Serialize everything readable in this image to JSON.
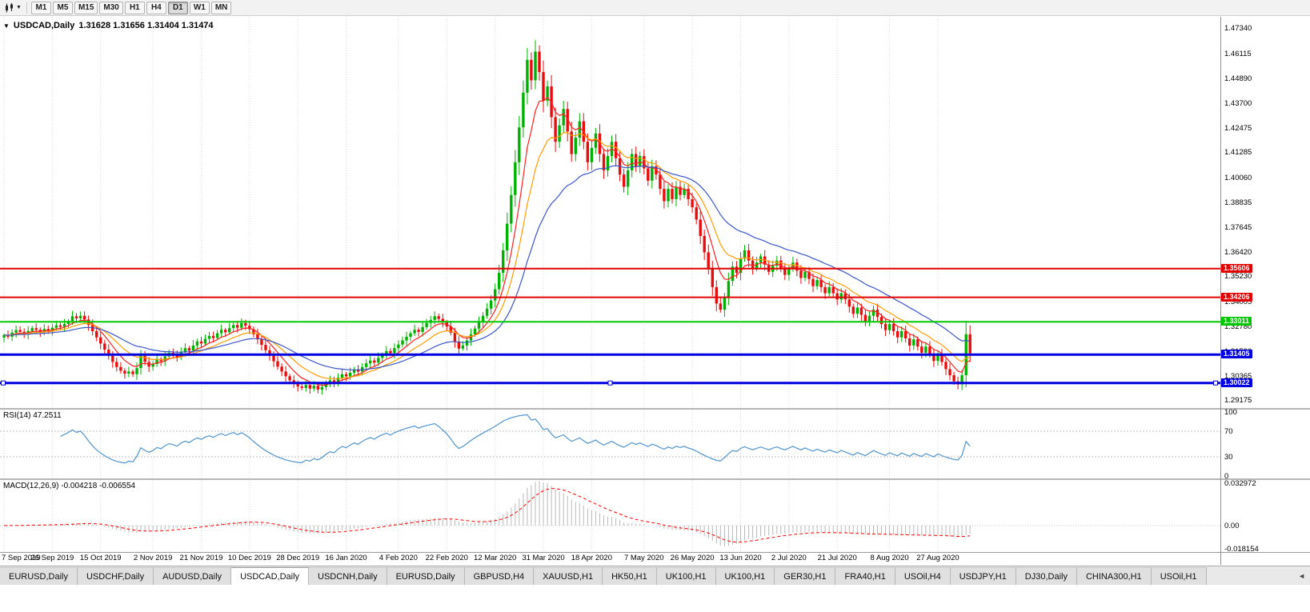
{
  "toolbar": {
    "timeframes": [
      "M1",
      "M5",
      "M15",
      "M30",
      "H1",
      "H4",
      "D1",
      "W1",
      "MN"
    ],
    "active_timeframe": "D1",
    "chart_selector_icon": "candlestick-chart-dropdown-icon"
  },
  "chart": {
    "symbol_title": "USDCAD,Daily",
    "ohlc_text": "1.31628 1.31656 1.31404 1.31474",
    "marker_icon": "down-triangle-icon",
    "price_axis_labels": [
      "1.47340",
      "1.46115",
      "1.44890",
      "1.43700",
      "1.42475",
      "1.41285",
      "1.40060",
      "1.38835",
      "1.37645",
      "1.36420",
      "1.35230",
      "1.34005",
      "1.32780",
      "1.31590",
      "1.30365",
      "1.29175"
    ],
    "hlines": [
      {
        "label": "1.35606",
        "value": 1.35606,
        "color": "#e00000",
        "thickness": 2,
        "selected": false
      },
      {
        "label": "1.34206",
        "value": 1.34206,
        "color": "#e00000",
        "thickness": 2,
        "selected": false
      },
      {
        "label": "1.33011",
        "value": 1.33011,
        "color": "#00c800",
        "thickness": 2,
        "selected": false
      },
      {
        "label": "1.31405",
        "value": 1.31405,
        "color": "#0000e0",
        "thickness": 3,
        "selected": false
      },
      {
        "label": "1.30022",
        "value": 1.30022,
        "color": "#0000e0",
        "thickness": 3,
        "selected": true
      }
    ],
    "colors": {
      "bull": "#00b200",
      "bear": "#ea0c0c",
      "ma_fast": "#ff2020",
      "ma_mid": "#ff9c00",
      "ma_slow": "#3a56c8",
      "grid": "#d9d9d9",
      "rsi_line": "#4f94cd",
      "rsi_level": "#bdbdbd",
      "macd_hist": "#b8b8b8",
      "macd_signal": "#ff0000"
    }
  },
  "chart_data": {
    "type": "candlestick",
    "symbol": "USDCAD",
    "timeframe": "Daily",
    "title": "USDCAD,Daily 1.31628 1.31656 1.31404 1.31474",
    "ylim": [
      1.288,
      1.479
    ],
    "x_labels": [
      "7 Sep 2019",
      "26 Sep 2019",
      "15 Oct 2019",
      "2 Nov 2019",
      "21 Nov 2019",
      "10 Dec 2019",
      "28 Dec 2019",
      "16 Jan 2020",
      "4 Feb 2020",
      "22 Feb 2020",
      "12 Mar 2020",
      "31 Mar 2020",
      "18 Apr 2020",
      "7 May 2020",
      "26 May 2020",
      "13 Jun 2020",
      "2 Jul 2020",
      "21 Jul 2020",
      "8 Aug 2020",
      "27 Aug 2020"
    ],
    "horizontal_line_values": [
      1.35606,
      1.34206,
      1.33011,
      1.31405,
      1.30022
    ],
    "closes": [
      1.3236,
      1.3228,
      1.3248,
      1.3261,
      1.3252,
      1.324,
      1.3256,
      1.327,
      1.3262,
      1.3251,
      1.3266,
      1.3258,
      1.3272,
      1.3284,
      1.3276,
      1.329,
      1.3305,
      1.3328,
      1.3318,
      1.333,
      1.3312,
      1.3285,
      1.3255,
      1.3225,
      1.3195,
      1.3165,
      1.3135,
      1.3105,
      1.308,
      1.3062,
      1.3048,
      1.3058,
      1.3045,
      1.3075,
      1.3135,
      1.3105,
      1.3082,
      1.3095,
      1.312,
      1.3108,
      1.3132,
      1.315,
      1.3142,
      1.3128,
      1.3155,
      1.3172,
      1.316,
      1.3185,
      1.3205,
      1.3195,
      1.3218,
      1.3232,
      1.3222,
      1.3245,
      1.3262,
      1.325,
      1.327,
      1.3285,
      1.3272,
      1.3295,
      1.3282,
      1.3265,
      1.324,
      1.3215,
      1.3188,
      1.3162,
      1.3135,
      1.3108,
      1.3082,
      1.3058,
      1.3035,
      1.3015,
      1.2998,
      1.2985,
      1.2978,
      1.2992,
      1.2975,
      1.2988,
      1.297,
      1.2982,
      1.3,
      1.3015,
      1.3005,
      1.3028,
      1.3045,
      1.3035,
      1.3052,
      1.3068,
      1.3058,
      1.308,
      1.3098,
      1.3112,
      1.3102,
      1.3125,
      1.3142,
      1.3158,
      1.3148,
      1.3172,
      1.319,
      1.321,
      1.3228,
      1.3245,
      1.3262,
      1.3252,
      1.3275,
      1.3295,
      1.331,
      1.3328,
      1.3315,
      1.3298,
      1.3278,
      1.3248,
      1.3205,
      1.317,
      1.3185,
      1.321,
      1.324,
      1.3268,
      1.3298,
      1.333,
      1.3365,
      1.3405,
      1.346,
      1.354,
      1.365,
      1.378,
      1.392,
      1.408,
      1.425,
      1.442,
      1.458,
      1.448,
      1.462,
      1.452,
      1.438,
      1.445,
      1.43,
      1.418,
      1.426,
      1.434,
      1.423,
      1.412,
      1.42,
      1.428,
      1.418,
      1.408,
      1.415,
      1.422,
      1.412,
      1.404,
      1.411,
      1.418,
      1.41,
      1.402,
      1.396,
      1.404,
      1.412,
      1.406,
      1.411,
      1.405,
      1.399,
      1.406,
      1.402,
      1.395,
      1.389,
      1.395,
      1.39,
      1.396,
      1.392,
      1.395,
      1.39,
      1.386,
      1.38,
      1.372,
      1.364,
      1.356,
      1.347,
      1.339,
      1.336,
      1.342,
      1.35,
      1.357,
      1.354,
      1.361,
      1.365,
      1.36,
      1.356,
      1.359,
      1.362,
      1.358,
      1.3545,
      1.3575,
      1.36,
      1.356,
      1.353,
      1.356,
      1.359,
      1.355,
      1.3515,
      1.3545,
      1.351,
      1.3475,
      1.3505,
      1.347,
      1.344,
      1.347,
      1.344,
      1.341,
      1.344,
      1.341,
      1.3375,
      1.334,
      1.337,
      1.3335,
      1.33,
      1.333,
      1.336,
      1.3325,
      1.329,
      1.326,
      1.329,
      1.3255,
      1.3225,
      1.3255,
      1.322,
      1.3185,
      1.3215,
      1.318,
      1.315,
      1.318,
      1.3145,
      1.311,
      1.314,
      1.3105,
      1.307,
      1.304,
      1.301,
      1.2995,
      1.304,
      1.324,
      1.3147
    ],
    "indicators": {
      "rsi": {
        "label": "RSI(14)",
        "current": "47.2511",
        "levels": [
          70,
          30
        ],
        "axis_labels": [
          "100",
          "70",
          "30",
          "0"
        ]
      },
      "macd": {
        "label": "MACD(12,26,9)",
        "current": "-0.004218 -0.006554",
        "axis_labels": [
          "0.032972",
          "0.00",
          "-0.018154"
        ],
        "axis_values": [
          0.032972,
          0,
          -0.018154
        ]
      }
    }
  },
  "tabbar": {
    "tabs": [
      {
        "label": "EURUSD,Daily"
      },
      {
        "label": "USDCHF,Daily"
      },
      {
        "label": "AUDUSD,Daily"
      },
      {
        "label": "USDCAD,Daily"
      },
      {
        "label": "USDCNH,Daily"
      },
      {
        "label": "EURUSD,Daily"
      },
      {
        "label": "GBPUSD,H4"
      },
      {
        "label": "XAUUSD,H1"
      },
      {
        "label": "HK50,H1"
      },
      {
        "label": "UK100,H1"
      },
      {
        "label": "UK100,H1"
      },
      {
        "label": "GER30,H1"
      },
      {
        "label": "FRA40,H1"
      },
      {
        "label": "USOil,H4"
      },
      {
        "label": "USDJPY,H1"
      },
      {
        "label": "DJ30,Daily"
      },
      {
        "label": "CHINA300,H1"
      },
      {
        "label": "USOil,H1"
      }
    ],
    "active_index": 3,
    "scroll_left_glyph": "◄"
  }
}
